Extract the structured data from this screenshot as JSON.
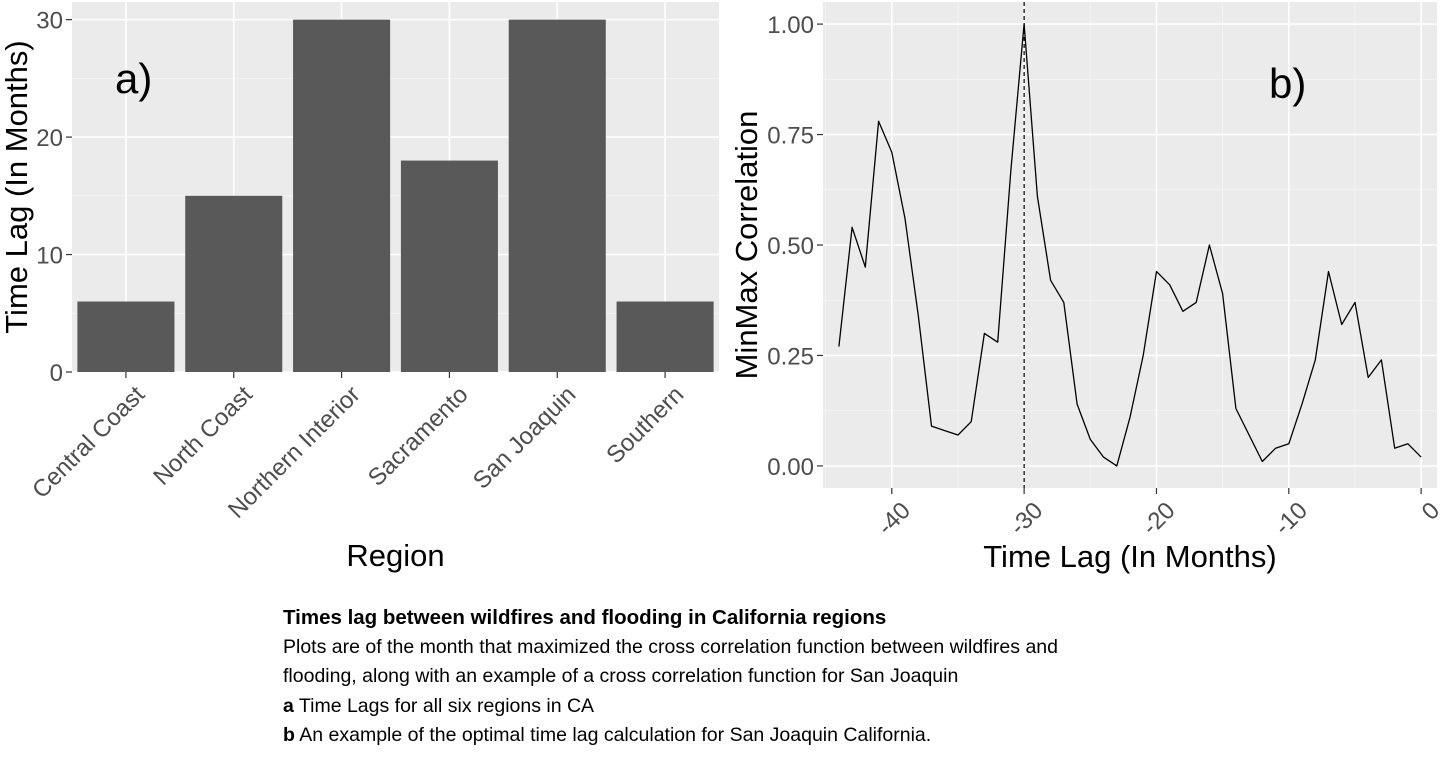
{
  "chart_data": [
    {
      "type": "bar",
      "panel_label": "a)",
      "xlabel": "Region",
      "ylabel": "Time Lag (In Months)",
      "categories": [
        "Central Coast",
        "North Coast",
        "Northern Interior",
        "Sacramento",
        "San Joaquin",
        "Southern"
      ],
      "values": [
        6,
        15,
        30,
        18,
        30,
        6
      ],
      "ylim": [
        0,
        31.5
      ],
      "yticks": [
        "0",
        "10",
        "20",
        "30"
      ],
      "bar_color": "#595959",
      "panel_background": "#ebebeb",
      "grid": true
    },
    {
      "type": "line",
      "panel_label": "b)",
      "xlabel": "Time Lag (In Months)",
      "ylabel": "MinMax Correlation",
      "x": [
        -44,
        -43,
        -42,
        -41,
        -40,
        -39,
        -38,
        -37,
        -36,
        -35,
        -34,
        -33,
        -32,
        -31,
        -30,
        -29,
        -28,
        -27,
        -26,
        -25,
        -24,
        -23,
        -22,
        -21,
        -20,
        -19,
        -18,
        -17,
        -16,
        -15,
        -14,
        -13,
        -12,
        -11,
        -10,
        -9,
        -8,
        -7,
        -6,
        -5,
        -4,
        -3,
        -2,
        -1,
        0
      ],
      "y": [
        0.27,
        0.54,
        0.45,
        0.78,
        0.71,
        0.56,
        0.34,
        0.09,
        0.08,
        0.07,
        0.1,
        0.3,
        0.28,
        0.67,
        1.0,
        0.61,
        0.42,
        0.37,
        0.14,
        0.06,
        0.02,
        0.0,
        0.11,
        0.25,
        0.44,
        0.41,
        0.35,
        0.37,
        0.5,
        0.39,
        0.13,
        0.07,
        0.01,
        0.04,
        0.05,
        0.14,
        0.24,
        0.44,
        0.32,
        0.37,
        0.2,
        0.24,
        0.04,
        0.05,
        0.02
      ],
      "vline_x": -30,
      "xlim": [
        -45.2,
        1.2
      ],
      "ylim": [
        -0.05,
        1.05
      ],
      "xticks": [
        "-40",
        "-30",
        "-20",
        "-10",
        "0"
      ],
      "yticks": [
        "0.00",
        "0.25",
        "0.50",
        "0.75",
        "1.00"
      ],
      "line_color": "#000000",
      "panel_background": "#ebebeb",
      "grid": true
    }
  ],
  "caption": {
    "title": "Times lag between wildfires and flooding in California regions",
    "line1": "Plots are of the month that maximized the cross correlation function between wildfires and",
    "line2": "flooding, along with an example of a cross correlation function for San Joaquin",
    "item_a_label": "a",
    "item_a_text": " Time Lags for all six regions in CA",
    "item_b_label": "b",
    "item_b_text": " An example of the optimal time lag calculation for San Joaquin California."
  }
}
